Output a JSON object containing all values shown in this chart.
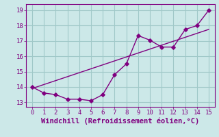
{
  "xlabel": "Windchill (Refroidissement éolien,°C)",
  "x_data": [
    0,
    1,
    2,
    3,
    4,
    5,
    6,
    7,
    8,
    9,
    10,
    11,
    12,
    13,
    14,
    15
  ],
  "y_zigzag": [
    14.0,
    13.6,
    13.5,
    13.2,
    13.2,
    13.1,
    13.5,
    14.8,
    15.5,
    17.35,
    17.05,
    16.6,
    16.6,
    17.75,
    18.0,
    19.0
  ],
  "y_trend_x": [
    0,
    15
  ],
  "y_trend_y": [
    13.9,
    17.75
  ],
  "line_color": "#800080",
  "bg_color": "#cce8e8",
  "grid_color": "#a0c8c8",
  "xlim": [
    -0.5,
    15.5
  ],
  "ylim": [
    12.7,
    19.4
  ],
  "yticks": [
    13,
    14,
    15,
    16,
    17,
    18,
    19
  ],
  "xticks": [
    0,
    1,
    2,
    3,
    4,
    5,
    6,
    7,
    8,
    9,
    10,
    11,
    12,
    13,
    14,
    15
  ],
  "xlabel_fontsize": 7.5,
  "tick_fontsize": 6.5,
  "marker_size": 2.8,
  "line_width": 1.0
}
